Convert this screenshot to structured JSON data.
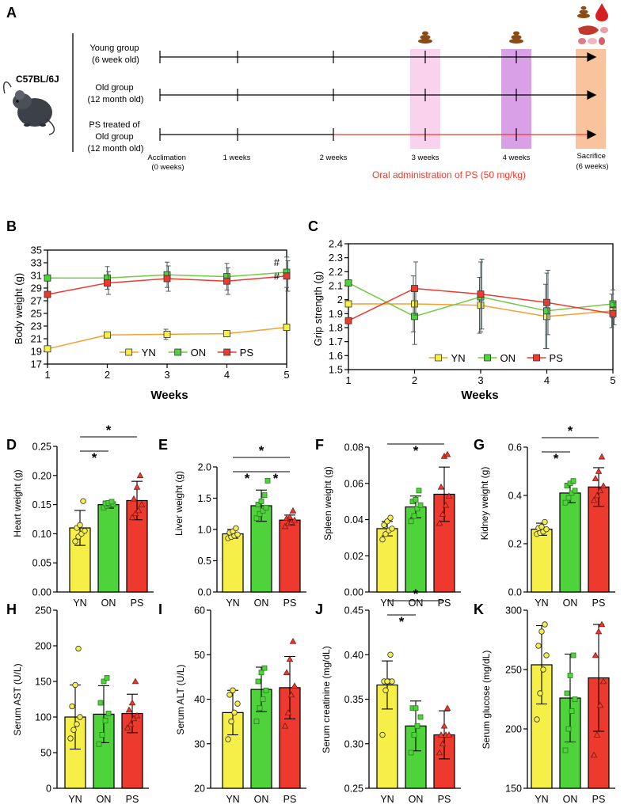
{
  "colors": {
    "yn": "#f5ef48",
    "on": "#4ed43a",
    "ps": "#ee3a2e",
    "ps_line": "#ee3a2e",
    "yn_line": "#f5a12f",
    "on_line": "#74c947",
    "wk3_band": "#f9d2ee",
    "wk4_band": "#d9a0e8",
    "sac_band": "#f9c49d"
  },
  "panel_a": {
    "letter": "A",
    "strain": "C57BL/6J",
    "groups": [
      {
        "line1": "Young group",
        "line2": "(6 week old)"
      },
      {
        "line1": "Old group",
        "line2": "(12 month old)"
      },
      {
        "line1": "PS treated of",
        "line2": "Old group",
        "line3": "(12 month old)"
      }
    ],
    "timepoints": [
      {
        "line1": "Acclimation",
        "line2": "(0 weeks)"
      },
      {
        "line1": "1 weeks",
        "line2": ""
      },
      {
        "line1": "2 weeks",
        "line2": ""
      },
      {
        "line1": "3 weeks",
        "line2": ""
      },
      {
        "line1": "4 weeks",
        "line2": ""
      },
      {
        "line1": "Sacrifice",
        "line2": "(6 weeks)"
      }
    ],
    "treatment_label": "Oral administration of PS (50 mg/kg)"
  },
  "chart_data": [
    {
      "panel": "B",
      "type": "line",
      "title": "",
      "xlabel": "Weeks",
      "ylabel": "Body weight (g)",
      "x": [
        1,
        2,
        3,
        4,
        5
      ],
      "xlim": [
        1,
        5
      ],
      "ylim": [
        17,
        35
      ],
      "yticks": [
        "17",
        "19",
        "21",
        "23",
        "25",
        "27",
        "29",
        "31",
        "33",
        "35"
      ],
      "series": [
        {
          "name": "YN",
          "values": [
            19.4,
            21.6,
            21.7,
            21.8,
            22.8
          ],
          "errors": [
            0.4,
            0.4,
            0.8,
            0.5,
            0.5
          ]
        },
        {
          "name": "ON",
          "values": [
            30.6,
            30.6,
            31.1,
            30.8,
            31.5
          ],
          "errors": [
            0.3,
            1.8,
            2.0,
            2.1,
            2.4
          ]
        },
        {
          "name": "PS",
          "values": [
            28.0,
            29.8,
            30.5,
            30.1,
            30.9
          ],
          "errors": [
            0.3,
            1.8,
            2.0,
            2.1,
            2.4
          ]
        }
      ],
      "annotations": [
        "#",
        "#"
      ],
      "legend": "bottom"
    },
    {
      "panel": "C",
      "type": "line",
      "title": "",
      "xlabel": "Weeks",
      "ylabel": "Grip strength (g)",
      "x": [
        1,
        2,
        3,
        4,
        5
      ],
      "xlim": [
        1,
        5
      ],
      "ylim": [
        1.5,
        2.4
      ],
      "yticks": [
        "1.5",
        "1.6",
        "1.7",
        "1.8",
        "1.9",
        "2",
        "2.1",
        "2.2",
        "2.3",
        "2.4"
      ],
      "series": [
        {
          "name": "YN",
          "values": [
            1.97,
            1.97,
            1.96,
            1.88,
            1.92
          ],
          "errors": [
            0.0,
            0.2,
            0.2,
            0.23,
            0.12
          ]
        },
        {
          "name": "ON",
          "values": [
            2.12,
            1.88,
            2.02,
            1.92,
            1.97
          ],
          "errors": [
            0.0,
            0.2,
            0.25,
            0.27,
            0.1
          ]
        },
        {
          "name": "PS",
          "values": [
            1.85,
            2.08,
            2.04,
            1.98,
            1.9
          ],
          "errors": [
            0.0,
            0.19,
            0.25,
            0.23,
            0.08
          ]
        }
      ],
      "legend": "bottom"
    },
    {
      "panel": "D",
      "type": "bar",
      "ylabel": "Heart weight (g)",
      "categories": [
        "YN",
        "ON",
        "PS"
      ],
      "ylim": [
        0,
        0.25
      ],
      "yticks": [
        "0.00",
        "0.05",
        "0.10",
        "0.15",
        "0.20",
        "0.25"
      ],
      "values": [
        0.11,
        0.15,
        0.157
      ],
      "errors": [
        0.03,
        0.006,
        0.033
      ],
      "points": [
        [
          0.087,
          0.095,
          0.1,
          0.105,
          0.11,
          0.115,
          0.156
        ],
        [
          0.145,
          0.148,
          0.15,
          0.151,
          0.152,
          0.153,
          0.155
        ],
        [
          0.128,
          0.135,
          0.14,
          0.15,
          0.16,
          0.18,
          0.2
        ]
      ],
      "significance": [
        {
          "from": 0,
          "to": 1,
          "label": "*"
        },
        {
          "from": 0,
          "to": 2,
          "label": "*"
        }
      ]
    },
    {
      "panel": "E",
      "type": "bar",
      "ylabel": "Liver weight (g)",
      "categories": [
        "YN",
        "ON",
        "PS"
      ],
      "ylim": [
        0,
        2.0
      ],
      "yticks": [
        "0.0",
        "0.5",
        "1.0",
        "1.5",
        "2.0"
      ],
      "values": [
        0.93,
        1.38,
        1.15
      ],
      "errors": [
        0.07,
        0.25,
        0.08
      ],
      "points": [
        [
          0.86,
          0.88,
          0.9,
          0.92,
          0.95,
          0.97,
          1.02
        ],
        [
          1.18,
          1.25,
          1.3,
          1.35,
          1.4,
          1.45,
          1.55,
          1.78
        ],
        [
          1.05,
          1.1,
          1.12,
          1.15,
          1.18,
          1.2,
          1.3
        ]
      ],
      "significance": [
        {
          "from": 0,
          "to": 1,
          "label": "*"
        },
        {
          "from": 1,
          "to": 2,
          "label": "*"
        },
        {
          "from": 0,
          "to": 2,
          "label": "*"
        }
      ]
    },
    {
      "panel": "F",
      "type": "bar",
      "ylabel": "Spleen weight (g)",
      "categories": [
        "YN",
        "ON",
        "PS"
      ],
      "ylim": [
        0,
        0.08
      ],
      "yticks": [
        "0.00",
        "0.02",
        "0.04",
        "0.06",
        "0.08"
      ],
      "values": [
        0.035,
        0.047,
        0.054
      ],
      "errors": [
        0.004,
        0.006,
        0.015
      ],
      "points": [
        [
          0.029,
          0.032,
          0.034,
          0.035,
          0.037,
          0.039,
          0.041
        ],
        [
          0.039,
          0.042,
          0.046,
          0.048,
          0.05,
          0.051,
          0.056
        ],
        [
          0.038,
          0.043,
          0.048,
          0.053,
          0.058,
          0.075,
          0.076
        ]
      ],
      "significance": [
        {
          "from": 0,
          "to": 2,
          "label": "*"
        }
      ]
    },
    {
      "panel": "G",
      "type": "bar",
      "ylabel": "Kidney weight (g)",
      "categories": [
        "YN",
        "ON",
        "PS"
      ],
      "ylim": [
        0,
        0.6
      ],
      "yticks": [
        "0.0",
        "0.2",
        "0.4",
        "0.6"
      ],
      "values": [
        0.26,
        0.41,
        0.435
      ],
      "errors": [
        0.025,
        0.04,
        0.08
      ],
      "points": [
        [
          0.24,
          0.245,
          0.25,
          0.26,
          0.265,
          0.27,
          0.29
        ],
        [
          0.37,
          0.39,
          0.41,
          0.42,
          0.44,
          0.45,
          0.46
        ],
        [
          0.38,
          0.4,
          0.42,
          0.44,
          0.47,
          0.5,
          0.56
        ]
      ],
      "significance": [
        {
          "from": 0,
          "to": 1,
          "label": "*"
        },
        {
          "from": 0,
          "to": 2,
          "label": "*"
        }
      ]
    },
    {
      "panel": "H",
      "type": "bar",
      "ylabel": "Serum AST (U/L)",
      "categories": [
        "YN",
        "ON",
        "PS"
      ],
      "ylim": [
        0,
        250
      ],
      "yticks": [
        "0",
        "50",
        "100",
        "150",
        "200",
        "250"
      ],
      "values": [
        100,
        104,
        105
      ],
      "errors": [
        45,
        40,
        27
      ],
      "points": [
        [
          70,
          82,
          90,
          100,
          115,
          145,
          196
        ],
        [
          62,
          75,
          95,
          105,
          120,
          150,
          155
        ],
        [
          85,
          90,
          98,
          102,
          110,
          120,
          150
        ]
      ],
      "significance": []
    },
    {
      "panel": "I",
      "type": "bar",
      "ylabel": "Serum ALT (U/L)",
      "categories": [
        "YN",
        "ON",
        "PS"
      ],
      "ylim": [
        20,
        60
      ],
      "yticks": [
        "20",
        "30",
        "40",
        "50",
        "60"
      ],
      "values": [
        37,
        42.2,
        42.6
      ],
      "errors": [
        5,
        5,
        7
      ],
      "points": [
        [
          31,
          35,
          37,
          39,
          41,
          42
        ],
        [
          35,
          38,
          40,
          42,
          44,
          46,
          47
        ],
        [
          34,
          37,
          41,
          43,
          46,
          49,
          53
        ]
      ],
      "significance": []
    },
    {
      "panel": "J",
      "type": "bar",
      "ylabel": "Serum creatinine (mg/dL)",
      "categories": [
        "YN",
        "ON",
        "PS"
      ],
      "ylim": [
        0.25,
        0.45
      ],
      "yticks": [
        "0.25",
        "0.30",
        "0.35",
        "0.40",
        "0.45"
      ],
      "values": [
        0.366,
        0.32,
        0.31
      ],
      "errors": [
        0.027,
        0.028,
        0.027
      ],
      "points": [
        [
          0.31,
          0.36,
          0.37,
          0.37,
          0.37,
          0.37,
          0.4
        ],
        [
          0.29,
          0.31,
          0.32,
          0.33,
          0.34,
          0.34
        ],
        [
          0.29,
          0.3,
          0.31,
          0.31,
          0.31,
          0.32,
          0.34
        ]
      ],
      "significance": [
        {
          "from": 0,
          "to": 1,
          "label": "*"
        },
        {
          "from": 0,
          "to": 2,
          "label": "*"
        }
      ]
    },
    {
      "panel": "K",
      "type": "bar",
      "ylabel": "Serum glucose (mg/dL)",
      "categories": [
        "YN",
        "ON",
        "PS"
      ],
      "ylim": [
        150,
        300
      ],
      "yticks": [
        "150",
        "200",
        "250",
        "300"
      ],
      "values": [
        254,
        226,
        243
      ],
      "errors": [
        33,
        37,
        45
      ],
      "points": [
        [
          208,
          230,
          250,
          262,
          270,
          282,
          288
        ],
        [
          182,
          200,
          215,
          225,
          230,
          245,
          262
        ],
        [
          178,
          195,
          220,
          240,
          262,
          282,
          288
        ]
      ],
      "significance": []
    }
  ]
}
